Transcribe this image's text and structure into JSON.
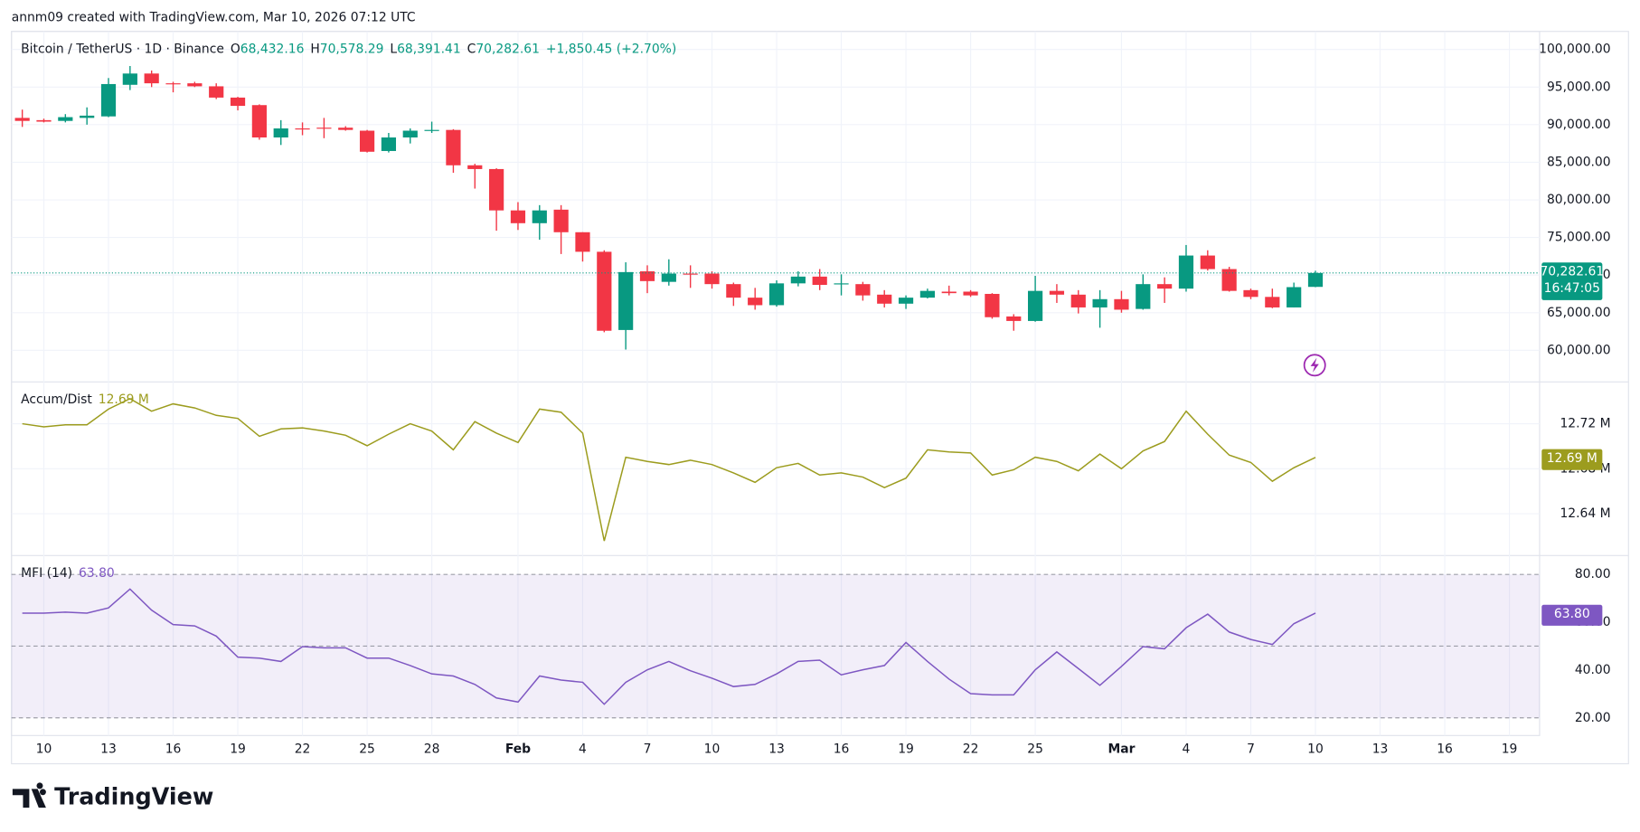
{
  "header": {
    "credit": "annm09 created with TradingView.com, Mar 10, 2026 07:12 UTC",
    "brand": "TradingView"
  },
  "chart_data": [
    {
      "type": "candlestick",
      "title": "Bitcoin / TetherUS · 1D · Binance",
      "legend": [
        {
          "key": "O",
          "text": "68,432.16"
        },
        {
          "key": "H",
          "text": "70,578.29"
        },
        {
          "key": "L",
          "text": "68,391.41"
        },
        {
          "key": "C",
          "text": "70,282.61"
        }
      ],
      "change": "+1,850.45 (+2.70%)",
      "last_label": "70,282.61",
      "countdown": "16:47:05",
      "up_color": "#089981",
      "down_color": "#f23645",
      "open": [
        90900,
        90600,
        90500,
        90900,
        91100,
        95300,
        96800,
        95500,
        95500,
        95100,
        93600,
        92600,
        88300,
        89500,
        89600,
        89600,
        89200,
        86500,
        88300,
        89200,
        89300,
        84600,
        84100,
        78600,
        76900,
        78700,
        75700,
        73100,
        62700,
        70500,
        69100,
        70200,
        70200,
        68800,
        67000,
        66000,
        68900,
        69800,
        68800,
        68800,
        67400,
        66200,
        67000,
        67800,
        67800,
        67500,
        64500,
        63900,
        67900,
        67400,
        65700,
        66800,
        65500,
        68800,
        68200,
        72600,
        70800,
        68000,
        67100,
        65700,
        68432.16
      ],
      "high": [
        92000,
        90800,
        91400,
        92300,
        96200,
        97800,
        97200,
        95700,
        95700,
        95500,
        93700,
        92700,
        90600,
        90300,
        90900,
        89800,
        89300,
        88900,
        89500,
        90400,
        89400,
        84800,
        84200,
        79700,
        79300,
        79300,
        75700,
        73300,
        71700,
        71300,
        72100,
        71300,
        70500,
        69000,
        68300,
        69300,
        70500,
        70800,
        70100,
        69100,
        68000,
        67300,
        68200,
        68600,
        68000,
        67600,
        64800,
        69900,
        68800,
        68000,
        68000,
        67900,
        70100,
        69700,
        74000,
        73300,
        71100,
        68200,
        68200,
        69000,
        70578.29
      ],
      "low": [
        89700,
        90300,
        90300,
        90000,
        91000,
        94600,
        95000,
        94300,
        95000,
        93400,
        91900,
        88000,
        87300,
        88600,
        88200,
        89200,
        86300,
        86300,
        87500,
        88900,
        83600,
        81500,
        75900,
        76000,
        74700,
        72800,
        71800,
        62400,
        60100,
        67600,
        68600,
        68300,
        68200,
        65900,
        65400,
        65800,
        68500,
        68000,
        67300,
        66600,
        65700,
        65500,
        66900,
        67300,
        67100,
        64200,
        62600,
        63800,
        66300,
        64900,
        63000,
        65000,
        65400,
        66300,
        67800,
        70600,
        67800,
        66800,
        65600,
        65700,
        68391.41
      ],
      "close": [
        90500,
        90400,
        91000,
        91200,
        95400,
        96800,
        95500,
        95400,
        95100,
        93600,
        92500,
        88300,
        89500,
        89400,
        89500,
        89300,
        86400,
        88300,
        89200,
        89300,
        84600,
        84100,
        78600,
        76900,
        78600,
        75700,
        73100,
        62600,
        70400,
        69200,
        70200,
        70100,
        68800,
        67000,
        66000,
        68900,
        69800,
        68700,
        68900,
        67300,
        66200,
        67000,
        67900,
        67600,
        67300,
        64400,
        63900,
        67900,
        67400,
        65700,
        66800,
        65400,
        68800,
        68200,
        72600,
        70800,
        67900,
        67100,
        65700,
        68400,
        70282.61
      ],
      "xlim": [
        -0.5,
        70.4
      ],
      "xticks": [
        {
          "value": 1,
          "label": "10"
        },
        {
          "value": 4,
          "label": "13"
        },
        {
          "value": 7,
          "label": "16"
        },
        {
          "value": 10,
          "label": "19"
        },
        {
          "value": 13,
          "label": "22"
        },
        {
          "value": 16,
          "label": "25"
        },
        {
          "value": 19,
          "label": "28"
        },
        {
          "value": 23,
          "label": "Feb"
        },
        {
          "value": 26,
          "label": "4"
        },
        {
          "value": 29,
          "label": "7"
        },
        {
          "value": 32,
          "label": "10"
        },
        {
          "value": 35,
          "label": "13"
        },
        {
          "value": 38,
          "label": "16"
        },
        {
          "value": 41,
          "label": "19"
        },
        {
          "value": 44,
          "label": "22"
        },
        {
          "value": 47,
          "label": "25"
        },
        {
          "value": 51,
          "label": "Mar"
        },
        {
          "value": 54,
          "label": "4"
        },
        {
          "value": 57,
          "label": "7"
        },
        {
          "value": 60,
          "label": "10"
        },
        {
          "value": 63,
          "label": "13"
        },
        {
          "value": 66,
          "label": "16"
        },
        {
          "value": 69,
          "label": "19"
        }
      ],
      "ylim": [
        55800,
        102400
      ],
      "yticks": [
        {
          "value": 60000,
          "label": "60,000.00"
        },
        {
          "value": 65000,
          "label": "65,000.00"
        },
        {
          "value": 70000,
          "label": "70,000.00"
        },
        {
          "value": 75000,
          "label": "75,000.00"
        },
        {
          "value": 80000,
          "label": "80,000.00"
        },
        {
          "value": 85000,
          "label": "85,000.00"
        },
        {
          "value": 90000,
          "label": "90,000.00"
        },
        {
          "value": 95000,
          "label": "95,000.00"
        },
        {
          "value": 100000,
          "label": "100,000.00"
        }
      ],
      "grid": true
    },
    {
      "type": "line",
      "title": "Accum/Dist",
      "legend_value": "12.69 M",
      "last_label": "12.69 M",
      "color": "#9c9c1e",
      "values": [
        12.72,
        12.7172,
        12.7191,
        12.7191,
        12.733,
        12.7423,
        12.7312,
        12.7377,
        12.734,
        12.7274,
        12.7247,
        12.7088,
        12.7154,
        12.7163,
        12.7135,
        12.7098,
        12.7005,
        12.7107,
        12.72,
        12.7135,
        12.6968,
        12.7219,
        12.7116,
        12.7033,
        12.733,
        12.7302,
        12.7116,
        12.6158,
        12.6902,
        12.6865,
        12.6837,
        12.6875,
        12.6837,
        12.6763,
        12.6679,
        12.6809,
        12.6847,
        12.6744,
        12.6763,
        12.6726,
        12.6633,
        12.6716,
        12.6968,
        12.6949,
        12.694,
        12.6744,
        12.6791,
        12.6902,
        12.6865,
        12.6781,
        12.693,
        12.68,
        12.6958,
        12.7042,
        12.7312,
        12.7107,
        12.6921,
        12.6856,
        12.6688,
        12.6809,
        12.69
      ],
      "ylim": [
        12.6028,
        12.7572
      ],
      "yticks": [
        {
          "value": 12.64,
          "label": "12.64 M"
        },
        {
          "value": 12.68,
          "label": "12.68 M"
        },
        {
          "value": 12.72,
          "label": "12.72 M"
        }
      ],
      "grid": true
    },
    {
      "type": "line",
      "title": "MFI (14)",
      "legend_value": "63.80",
      "last_label": "63.80",
      "color": "#7e57c2",
      "values": [
        63.8,
        63.8,
        64.2,
        63.8,
        66.0,
        73.9,
        65.1,
        59.0,
        58.5,
        54.2,
        45.4,
        45.0,
        43.6,
        49.8,
        49.3,
        49.3,
        45.0,
        45.0,
        41.9,
        38.4,
        37.5,
        34.0,
        28.3,
        26.6,
        37.5,
        35.8,
        34.9,
        25.7,
        34.9,
        40.1,
        43.6,
        39.7,
        36.6,
        33.1,
        34.0,
        38.4,
        43.6,
        44.1,
        38.0,
        40.1,
        41.9,
        51.5,
        43.6,
        36.2,
        30.1,
        29.6,
        29.6,
        40.1,
        47.6,
        40.6,
        33.6,
        41.5,
        49.8,
        48.9,
        57.7,
        63.4,
        55.9,
        52.8,
        50.7,
        59.4,
        63.8
      ],
      "levels": [
        80,
        50,
        20
      ],
      "ylim": [
        12.6,
        87.9
      ],
      "yticks": [
        {
          "value": 20,
          "label": "20.00"
        },
        {
          "value": 40,
          "label": "40.00"
        },
        {
          "value": 60,
          "label": "60.00"
        },
        {
          "value": 80,
          "label": "80.00"
        }
      ],
      "grid": true
    }
  ]
}
